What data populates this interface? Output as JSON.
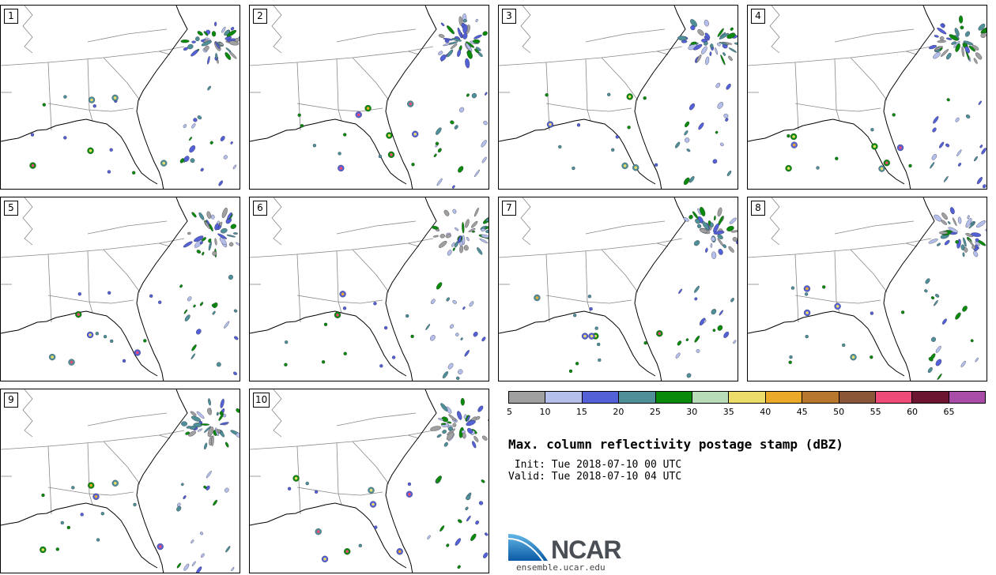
{
  "panels": [
    {
      "label": "1"
    },
    {
      "label": "2"
    },
    {
      "label": "3"
    },
    {
      "label": "4"
    },
    {
      "label": "5"
    },
    {
      "label": "6"
    },
    {
      "label": "7"
    },
    {
      "label": "8"
    },
    {
      "label": "9"
    },
    {
      "label": "10"
    }
  ],
  "colorbar": {
    "colors": [
      "#a0a0a0",
      "#b4bfeb",
      "#5460d6",
      "#4f8f98",
      "#0a8a0a",
      "#b8dbb8",
      "#ecdc6a",
      "#eaa928",
      "#b7782e",
      "#8b5538",
      "#ef4b79",
      "#6b1530",
      "#a84ca8"
    ],
    "ticks": [
      "5",
      "10",
      "15",
      "20",
      "25",
      "30",
      "35",
      "40",
      "45",
      "50",
      "55",
      "60",
      "65"
    ]
  },
  "title": "Max. column reflectivity postage stamp (dBZ)",
  "init": " Init: Tue 2018-07-10 00 UTC",
  "valid": "Valid: Tue 2018-07-10 04 UTC",
  "logo": {
    "text": "NCAR",
    "url": "ensemble.ucar.edu"
  }
}
